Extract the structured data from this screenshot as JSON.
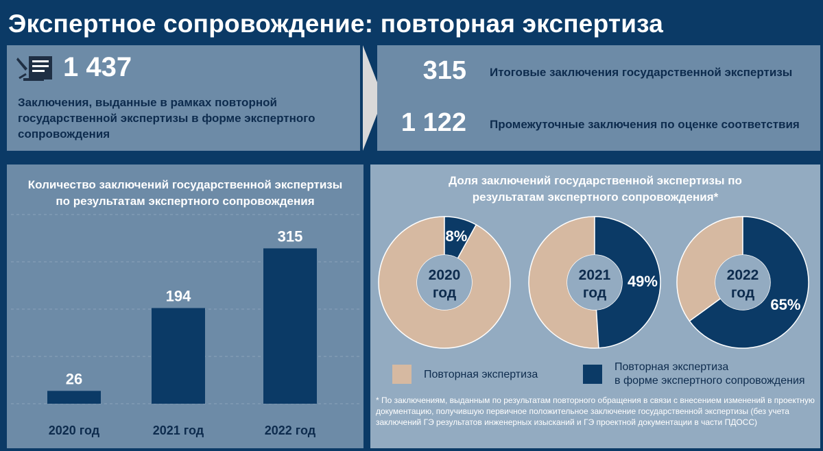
{
  "header": {
    "title": "Экспертное сопровождение: повторная экспертиза"
  },
  "summary": {
    "icon": "document-pen-icon",
    "total": "1 437",
    "total_desc": "Заключения, выданные в рамках повторной государственной экспертизы в форме экспертного сопровождения",
    "items": [
      {
        "value": "315",
        "label": "Итоговые заключения государственной экспертизы"
      },
      {
        "value": "1 122",
        "label": "Промежуточные заключения по оценке соответствия"
      }
    ]
  },
  "colors": {
    "navy": "#0b3a66",
    "beige": "#d6b9a1",
    "panel": "#6d8ba7",
    "panel_light": "#93abc1"
  },
  "chart_data": [
    {
      "type": "bar",
      "title": "Количество заключений государственной экспертизы по результатам экспертного сопровождения",
      "categories": [
        "2020 год",
        "2021 год",
        "2022 год"
      ],
      "values": [
        26,
        194,
        315
      ],
      "ylim": [
        0,
        360
      ],
      "grid": true
    },
    {
      "type": "pie",
      "title": "Доля заключений государственной экспертизы по результатам экспертного сопровождения*",
      "charts": [
        {
          "label_line1": "2020",
          "label_line2": "год",
          "share": 8,
          "share_label": "8%"
        },
        {
          "label_line1": "2021",
          "label_line2": "год",
          "share": 49,
          "share_label": "49%"
        },
        {
          "label_line1": "2022",
          "label_line2": "год",
          "share": 65,
          "share_label": "65%"
        }
      ],
      "legend": [
        {
          "label": "Повторная экспертиза",
          "color": "#d6b9a1"
        },
        {
          "label_line1": "Повторная экспертиза",
          "label_line2": "в форме экспертного сопровождения",
          "color": "#0b3a66"
        }
      ],
      "footnote": "* По заключениям, выданным по результатам повторного обращения в связи с внесением изменений в проектную документацию, получившую первичное положительное заключение государственной экспертизы (без учета заключений ГЭ результатов инженерных изысканий и ГЭ проектной документации в части ПДОСС)"
    }
  ]
}
